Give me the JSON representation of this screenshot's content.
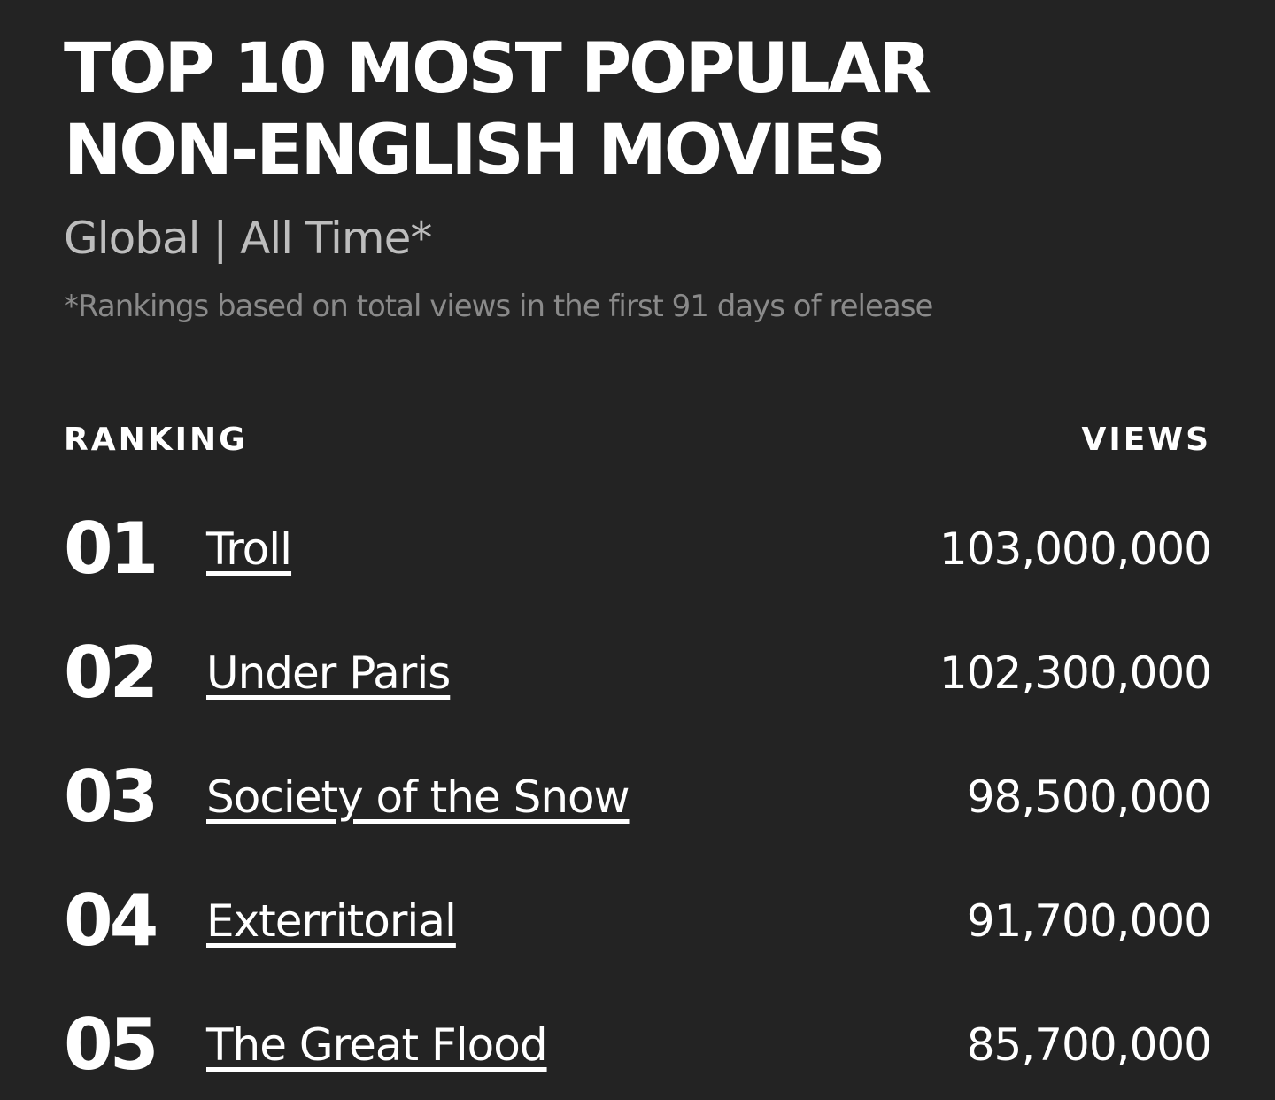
{
  "header": {
    "title": "TOP 10 MOST POPULAR NON-ENGLISH MOVIES",
    "subtitle": "Global | All Time*",
    "note": "*Rankings based on total views in the first 91 days of release"
  },
  "table": {
    "columns": [
      "RANKING",
      "VIEWS"
    ],
    "rows": [
      {
        "rank": "01",
        "title": "Troll",
        "views": "103,000,000"
      },
      {
        "rank": "02",
        "title": "Under Paris",
        "views": "102,300,000"
      },
      {
        "rank": "03",
        "title": "Society of the Snow",
        "views": "98,500,000"
      },
      {
        "rank": "04",
        "title": "Exterritorial",
        "views": "91,700,000"
      },
      {
        "rank": "05",
        "title": "The Great Flood",
        "views": "85,700,000"
      }
    ]
  }
}
